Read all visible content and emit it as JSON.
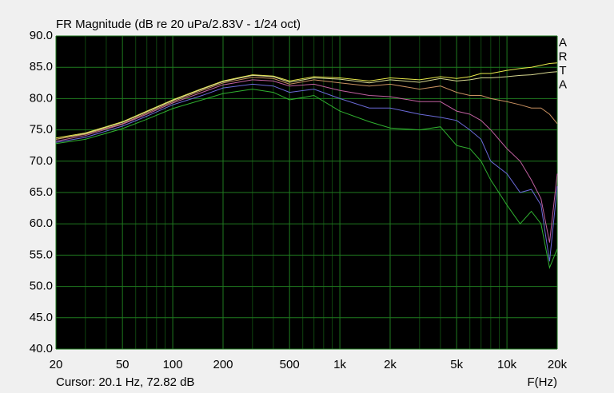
{
  "chart_data": {
    "type": "line",
    "title": "FR Magnitude (dB re 20 uPa/2.83V - 1/24 oct)",
    "logo": [
      "A",
      "R",
      "T",
      "A"
    ],
    "cursor": "Cursor: 20.1 Hz, 72.82 dB",
    "xlabel": "F(Hz)",
    "xscale": "log",
    "grid": true,
    "xlim": [
      20,
      20000
    ],
    "ylim": [
      40,
      90
    ],
    "xticks": [
      20,
      50,
      100,
      200,
      500,
      {
        "value": 1000,
        "label": "1k"
      },
      {
        "value": 2000,
        "label": "2k"
      },
      {
        "value": 5000,
        "label": "5k"
      },
      {
        "value": 10000,
        "label": "10k"
      },
      {
        "value": 20000,
        "label": "20k"
      }
    ],
    "xminorticks": [
      30,
      40,
      60,
      70,
      80,
      90,
      300,
      400,
      600,
      700,
      800,
      900,
      3000,
      4000,
      6000,
      7000,
      8000,
      9000
    ],
    "yticks": [
      {
        "value": 40,
        "label": "40.0"
      },
      {
        "value": 45,
        "label": "45.0"
      },
      {
        "value": 50,
        "label": "50.0"
      },
      {
        "value": 55,
        "label": "55.0"
      },
      {
        "value": 60,
        "label": "60.0"
      },
      {
        "value": 65,
        "label": "65.0"
      },
      {
        "value": 70,
        "label": "70.0"
      },
      {
        "value": 75,
        "label": "75.0"
      },
      {
        "value": 80,
        "label": "80.0"
      },
      {
        "value": 85,
        "label": "85.0"
      },
      {
        "value": 90,
        "label": "90.0"
      }
    ],
    "x": [
      20,
      30,
      50,
      70,
      100,
      150,
      200,
      300,
      400,
      500,
      700,
      1000,
      1500,
      2000,
      3000,
      4000,
      5000,
      6000,
      7000,
      8000,
      10000,
      12000,
      14000,
      16000,
      18000,
      20000
    ],
    "series": [
      {
        "color": "#e8e84a",
        "values": [
          73.7,
          74.5,
          76.3,
          78,
          79.8,
          81.6,
          82.8,
          83.8,
          83.6,
          82.8,
          83.5,
          83.3,
          82.8,
          83.3,
          83,
          83.5,
          83.2,
          83.5,
          84,
          84,
          84.5,
          84.8,
          85,
          85.3,
          85.6,
          85.7
        ]
      },
      {
        "color": "#d8d890",
        "values": [
          73.5,
          74.4,
          76.2,
          77.9,
          79.7,
          81.5,
          82.7,
          83.7,
          83.5,
          82.6,
          83.3,
          83.1,
          82.5,
          83,
          82.6,
          83.2,
          82.8,
          83,
          83.3,
          83.3,
          83.5,
          83.7,
          83.8,
          84,
          84.2,
          84.3
        ]
      },
      {
        "color": "#c89060",
        "values": [
          73.5,
          74.3,
          76,
          77.7,
          79.5,
          81.3,
          82.5,
          83.4,
          83.2,
          82.3,
          83,
          82.5,
          82,
          82.3,
          81.5,
          82,
          81,
          80.5,
          80.5,
          80,
          79.5,
          79,
          78.5,
          78.5,
          77.5,
          76
        ]
      },
      {
        "color": "#c060a0",
        "values": [
          73.2,
          74.1,
          75.9,
          77.5,
          79.3,
          81,
          82.2,
          83,
          82.8,
          82,
          82.3,
          81.3,
          80.5,
          80.3,
          79.5,
          79.5,
          78,
          77.5,
          76.5,
          75,
          72,
          70,
          67,
          64,
          57,
          68
        ]
      },
      {
        "color": "#6a6ad8",
        "values": [
          73,
          73.8,
          75.6,
          77.2,
          79,
          80.5,
          81.7,
          82.3,
          82,
          81,
          81.5,
          80,
          78.5,
          78.5,
          77.5,
          77,
          76.5,
          75,
          73.5,
          70,
          68,
          65,
          65.5,
          63,
          54,
          66
        ]
      },
      {
        "color": "#30b030",
        "values": [
          72.8,
          73.5,
          75.2,
          76.7,
          78.4,
          79.8,
          80.8,
          81.5,
          81,
          79.8,
          80.5,
          78,
          76.3,
          75.3,
          75,
          75.5,
          72.5,
          72,
          70,
          67,
          63,
          60,
          62,
          60,
          53,
          56
        ]
      }
    ]
  }
}
